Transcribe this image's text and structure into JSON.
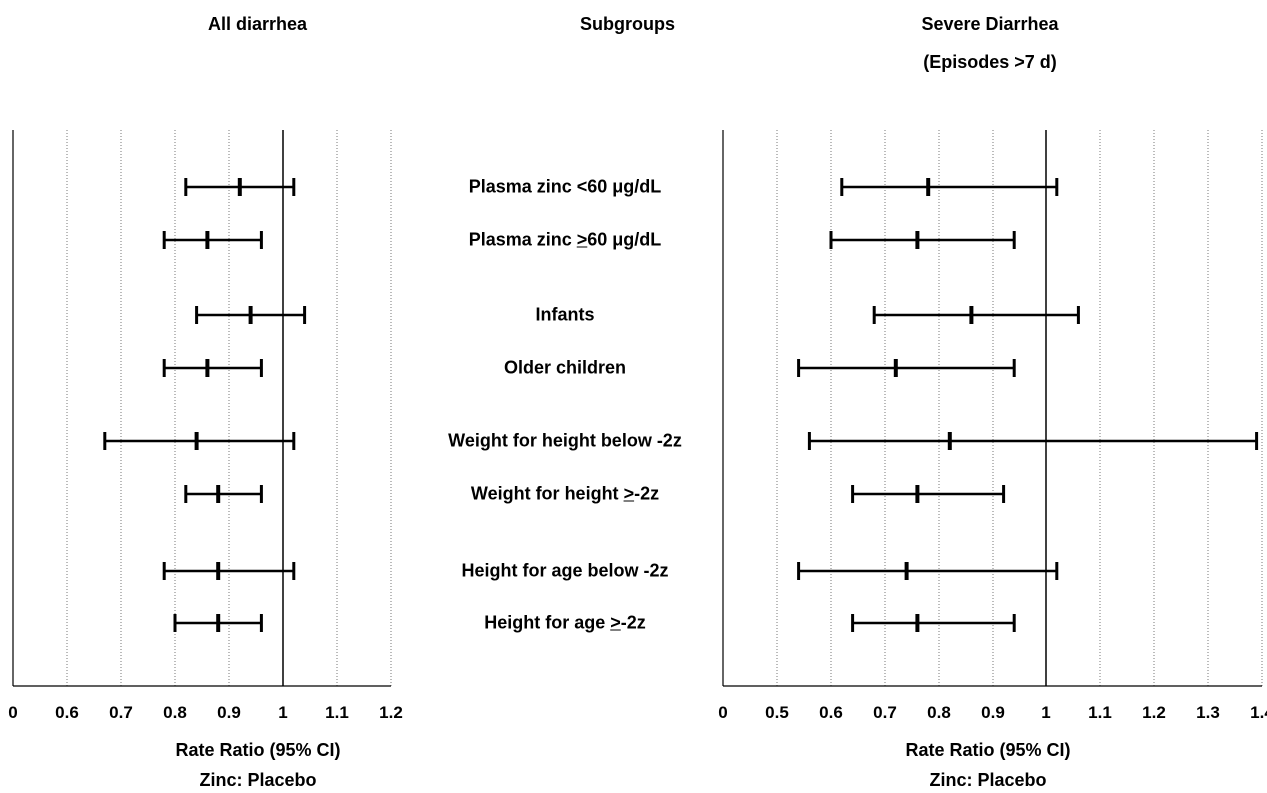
{
  "chart_data": {
    "type": "forest",
    "subgroups_header": "Subgroups",
    "subgroups": [
      "Plasma zinc <60 μg/dL",
      "Plasma zinc ≥60 μg/dL",
      "Infants",
      "Older children",
      "Weight for height below -2z",
      "Weight for height ≥-2z",
      "Height for age below -2z",
      "Height for age ≥-2z"
    ],
    "subgroup_parts": [
      [
        "Plasma zinc <60 μg/dL",
        "",
        ""
      ],
      [
        "Plasma zinc ",
        "&gt;",
        "60 μg/dL"
      ],
      [
        "Infants",
        "",
        ""
      ],
      [
        "Older children",
        "",
        ""
      ],
      [
        "Weight for height below -2z",
        "",
        ""
      ],
      [
        "Weight for height ",
        "&gt;",
        "-2z"
      ],
      [
        "Height for age below -2z",
        "",
        ""
      ],
      [
        "Height for age ",
        "&gt;",
        "-2z"
      ]
    ],
    "panels": [
      {
        "title": "All diarrhea",
        "subtitle": "",
        "xlabel": "Rate Ratio (95% CI)",
        "xlabel2": "Zinc: Placebo",
        "xticks": [
          "0",
          "0.6",
          "0.7",
          "0.8",
          "0.9",
          "1",
          "1.1",
          "1.2"
        ],
        "xtick_values": [
          0,
          0.6,
          0.7,
          0.8,
          0.9,
          1.0,
          1.1,
          1.2
        ],
        "reference_line": 1.0,
        "estimates": [
          {
            "rr": 0.92,
            "lo": 0.82,
            "hi": 1.02
          },
          {
            "rr": 0.86,
            "lo": 0.78,
            "hi": 0.96
          },
          {
            "rr": 0.94,
            "lo": 0.84,
            "hi": 1.04
          },
          {
            "rr": 0.86,
            "lo": 0.78,
            "hi": 0.96
          },
          {
            "rr": 0.84,
            "lo": 0.67,
            "hi": 1.02
          },
          {
            "rr": 0.88,
            "lo": 0.82,
            "hi": 0.96
          },
          {
            "rr": 0.88,
            "lo": 0.78,
            "hi": 1.02
          },
          {
            "rr": 0.88,
            "lo": 0.8,
            "hi": 0.96
          }
        ]
      },
      {
        "title": "Severe Diarrhea",
        "subtitle": "(Episodes >7 d)",
        "xlabel": "Rate Ratio (95% CI)",
        "xlabel2": "Zinc: Placebo",
        "xticks": [
          "0",
          "0.5",
          "0.6",
          "0.7",
          "0.8",
          "0.9",
          "1",
          "1.1",
          "1.2",
          "1.3",
          "1.4"
        ],
        "xtick_values": [
          0,
          0.5,
          0.6,
          0.7,
          0.8,
          0.9,
          1.0,
          1.1,
          1.2,
          1.3,
          1.4
        ],
        "reference_line": 1.0,
        "estimates": [
          {
            "rr": 0.78,
            "lo": 0.62,
            "hi": 1.02
          },
          {
            "rr": 0.76,
            "lo": 0.6,
            "hi": 0.94
          },
          {
            "rr": 0.86,
            "lo": 0.68,
            "hi": 1.06
          },
          {
            "rr": 0.72,
            "lo": 0.54,
            "hi": 0.94
          },
          {
            "rr": 0.82,
            "lo": 0.56,
            "hi": 1.39
          },
          {
            "rr": 0.76,
            "lo": 0.64,
            "hi": 0.92
          },
          {
            "rr": 0.74,
            "lo": 0.54,
            "hi": 1.02
          },
          {
            "rr": 0.76,
            "lo": 0.64,
            "hi": 0.94
          }
        ]
      }
    ]
  }
}
